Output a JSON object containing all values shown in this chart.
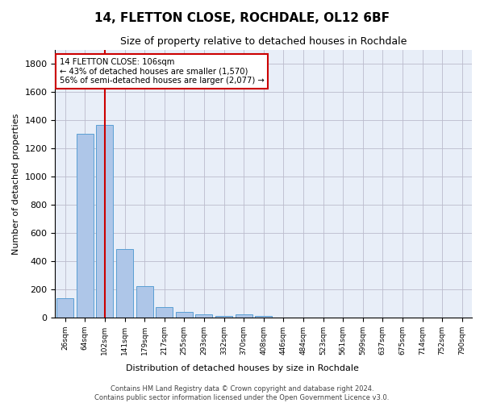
{
  "title": "14, FLETTON CLOSE, ROCHDALE, OL12 6BF",
  "subtitle": "Size of property relative to detached houses in Rochdale",
  "xlabel": "Distribution of detached houses by size in Rochdale",
  "ylabel": "Number of detached properties",
  "bar_labels": [
    "26sqm",
    "64sqm",
    "102sqm",
    "141sqm",
    "179sqm",
    "217sqm",
    "255sqm",
    "293sqm",
    "332sqm",
    "370sqm",
    "408sqm",
    "446sqm",
    "484sqm",
    "523sqm",
    "561sqm",
    "599sqm",
    "637sqm",
    "675sqm",
    "714sqm",
    "752sqm",
    "790sqm"
  ],
  "bar_values": [
    135,
    1305,
    1365,
    485,
    225,
    75,
    40,
    25,
    12,
    20,
    12,
    0,
    0,
    0,
    0,
    0,
    0,
    0,
    0,
    0,
    0
  ],
  "bar_color": "#aec6e8",
  "bar_edge_color": "#5a9fd4",
  "red_line_index": 2,
  "ylim": [
    0,
    1900
  ],
  "yticks": [
    0,
    200,
    400,
    600,
    800,
    1000,
    1200,
    1400,
    1600,
    1800
  ],
  "annotation_box_text": "14 FLETTON CLOSE: 106sqm\n← 43% of detached houses are smaller (1,570)\n56% of semi-detached houses are larger (2,077) →",
  "annotation_box_color": "#cc0000",
  "footer_line1": "Contains HM Land Registry data © Crown copyright and database right 2024.",
  "footer_line2": "Contains public sector information licensed under the Open Government Licence v3.0.",
  "bg_color": "#ffffff",
  "axes_bg_color": "#e8eef8",
  "grid_color": "#bbbbcc"
}
